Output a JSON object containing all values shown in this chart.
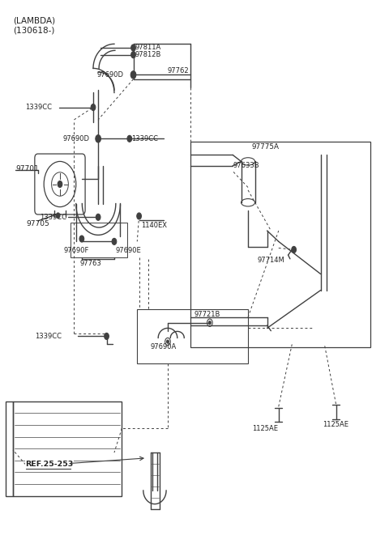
{
  "title_line1": "(LAMBDA)",
  "title_line2": "(130618-)",
  "bg_color": "#ffffff",
  "line_color": "#404040",
  "text_color": "#222222",
  "fig_width": 4.8,
  "fig_height": 6.77,
  "dpi": 100,
  "ref_label": "REF.25-253"
}
